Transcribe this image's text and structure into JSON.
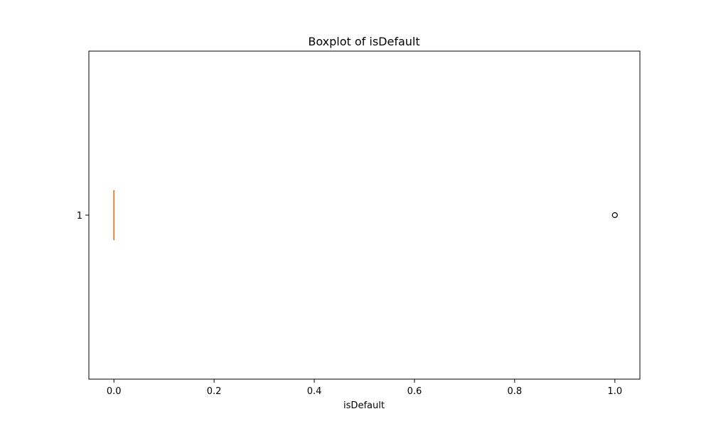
{
  "chart_data": {
    "type": "boxplot",
    "orientation": "horizontal",
    "title": "Boxplot of isDefault",
    "xlabel": "isDefault",
    "ylabel": "",
    "xlim": [
      -0.05,
      1.05
    ],
    "x_ticks": [
      0.0,
      0.2,
      0.4,
      0.6,
      0.8,
      1.0
    ],
    "x_tick_labels": [
      "0.0",
      "0.2",
      "0.4",
      "0.6",
      "0.8",
      "1.0"
    ],
    "y_ticks": [
      1
    ],
    "y_tick_labels": [
      "1"
    ],
    "boxes": [
      {
        "position": 1,
        "label": "1",
        "whislo": 0.0,
        "q1": 0.0,
        "median": 0.0,
        "q3": 0.0,
        "whishi": 0.0,
        "fliers": [
          1.0
        ]
      }
    ],
    "grid": false,
    "colors": {
      "median": "#e08a3c",
      "box": "#000000",
      "flier": "#000000"
    }
  }
}
